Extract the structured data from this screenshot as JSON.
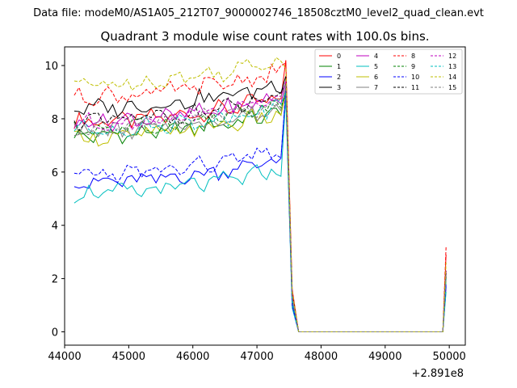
{
  "chart_data": {
    "type": "line",
    "suptitle": "Data file: modeM0/AS1A05_212T07_9000002746_18508cztM0_level2_quad_clean.evt",
    "title": "Quadrant 3 module wise count rates with 100.0s bins.",
    "xlabel": "",
    "ylabel": "",
    "offset_label": "+2.891e8",
    "xlim": [
      44000,
      50250
    ],
    "ylim": [
      -0.5,
      10.7
    ],
    "xticks": [
      44000,
      45000,
      46000,
      47000,
      48000,
      49000,
      50000
    ],
    "xtick_labels": [
      "44000",
      "45000",
      "46000",
      "47000",
      "48000",
      "49000",
      "50000"
    ],
    "yticks": [
      0,
      2,
      4,
      6,
      8,
      10
    ],
    "ytick_labels": [
      "0",
      "2",
      "4",
      "6",
      "8",
      "10"
    ],
    "legend_position": "top-right",
    "x_start": 44150,
    "x_step": 75,
    "tail_x": [
      47450,
      47550,
      47650,
      49900,
      49950
    ],
    "series": [
      {
        "name": "0",
        "color": "#ff0000",
        "dash": "solid",
        "level": 7.9,
        "tail": [
          10.2,
          1.6,
          0.0,
          0.0,
          2.9
        ]
      },
      {
        "name": "1",
        "color": "#008000",
        "dash": "solid",
        "level": 7.35,
        "tail": [
          9.1,
          1.3,
          0.0,
          0.0,
          2.2
        ]
      },
      {
        "name": "2",
        "color": "#0000ff",
        "dash": "solid",
        "level": 5.6,
        "tail": [
          9.0,
          1.0,
          0.0,
          0.0,
          1.7
        ]
      },
      {
        "name": "3",
        "color": "#000000",
        "dash": "solid",
        "level": 8.4,
        "tail": [
          9.6,
          1.4,
          0.0,
          0.0,
          2.3
        ]
      },
      {
        "name": "4",
        "color": "#bf00bf",
        "dash": "solid",
        "level": 7.9,
        "tail": [
          9.4,
          1.3,
          0.0,
          0.0,
          2.1
        ]
      },
      {
        "name": "5",
        "color": "#00bfbf",
        "dash": "solid",
        "level": 5.2,
        "tail": [
          8.8,
          0.9,
          0.0,
          0.0,
          1.5
        ]
      },
      {
        "name": "6",
        "color": "#bfbf00",
        "dash": "solid",
        "level": 7.3,
        "tail": [
          9.0,
          1.2,
          0.0,
          0.0,
          2.0
        ]
      },
      {
        "name": "7",
        "color": "#808080",
        "dash": "solid",
        "level": 7.5,
        "tail": [
          9.2,
          1.3,
          0.0,
          0.0,
          2.1
        ]
      },
      {
        "name": "8",
        "color": "#ff0000",
        "dash": "dashed",
        "level": 8.85,
        "tail": [
          10.1,
          1.5,
          0.0,
          0.0,
          3.2
        ]
      },
      {
        "name": "9",
        "color": "#008000",
        "dash": "dashed",
        "level": 7.6,
        "tail": [
          9.0,
          1.2,
          0.0,
          0.0,
          2.1
        ]
      },
      {
        "name": "10",
        "color": "#0000ff",
        "dash": "dashed",
        "level": 5.9,
        "tail": [
          9.1,
          1.0,
          0.0,
          0.0,
          1.8
        ]
      },
      {
        "name": "11",
        "color": "#000000",
        "dash": "dashed",
        "level": 7.9,
        "tail": [
          9.3,
          1.3,
          0.0,
          0.0,
          2.2
        ]
      },
      {
        "name": "12",
        "color": "#bf00bf",
        "dash": "dashed",
        "level": 7.85,
        "tail": [
          9.4,
          1.3,
          0.0,
          0.0,
          2.3
        ]
      },
      {
        "name": "13",
        "color": "#00bfbf",
        "dash": "dashed",
        "level": 7.6,
        "tail": [
          9.0,
          1.2,
          0.0,
          0.0,
          2.0
        ]
      },
      {
        "name": "14",
        "color": "#bfbf00",
        "dash": "dashed",
        "level": 9.3,
        "tail": [
          9.9,
          1.5,
          0.0,
          0.0,
          2.6
        ]
      },
      {
        "name": "15",
        "color": "#808080",
        "dash": "dashed",
        "level": 7.7,
        "tail": [
          9.3,
          1.3,
          0.0,
          0.0,
          2.2
        ]
      }
    ]
  }
}
